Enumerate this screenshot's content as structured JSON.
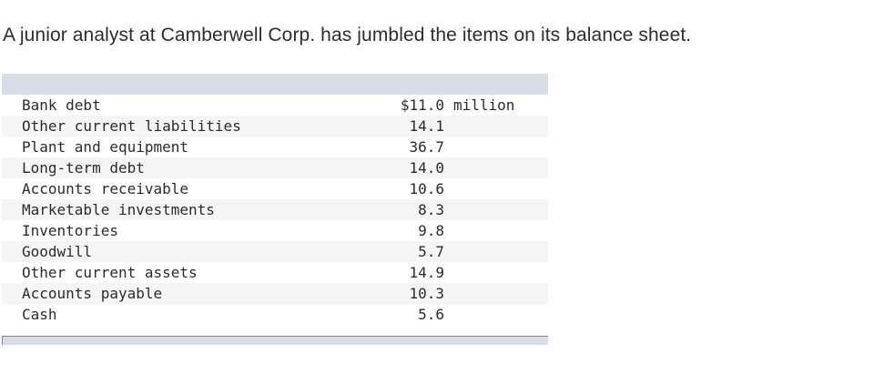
{
  "intro_text": "A junior analyst at Camberwell Corp. has jumbled the items on its balance sheet.",
  "table": {
    "header_color": "#d9dde7",
    "stripe_color": "#f5f5f5",
    "unit": "million",
    "rows": [
      {
        "label": "Bank debt",
        "value": "$11.0",
        "unit": "million"
      },
      {
        "label": "Other current liabilities",
        "value": "14.1",
        "unit": ""
      },
      {
        "label": "Plant and equipment",
        "value": "36.7",
        "unit": ""
      },
      {
        "label": "Long-term debt",
        "value": "14.0",
        "unit": ""
      },
      {
        "label": "Accounts receivable",
        "value": "10.6",
        "unit": ""
      },
      {
        "label": "Marketable investments",
        "value": "8.3",
        "unit": ""
      },
      {
        "label": "Inventories",
        "value": "9.8",
        "unit": ""
      },
      {
        "label": "Goodwill",
        "value": "5.7",
        "unit": ""
      },
      {
        "label": "Other current assets",
        "value": "14.9",
        "unit": ""
      },
      {
        "label": "Accounts payable",
        "value": "10.3",
        "unit": ""
      },
      {
        "label": "Cash",
        "value": "5.6",
        "unit": ""
      }
    ]
  }
}
